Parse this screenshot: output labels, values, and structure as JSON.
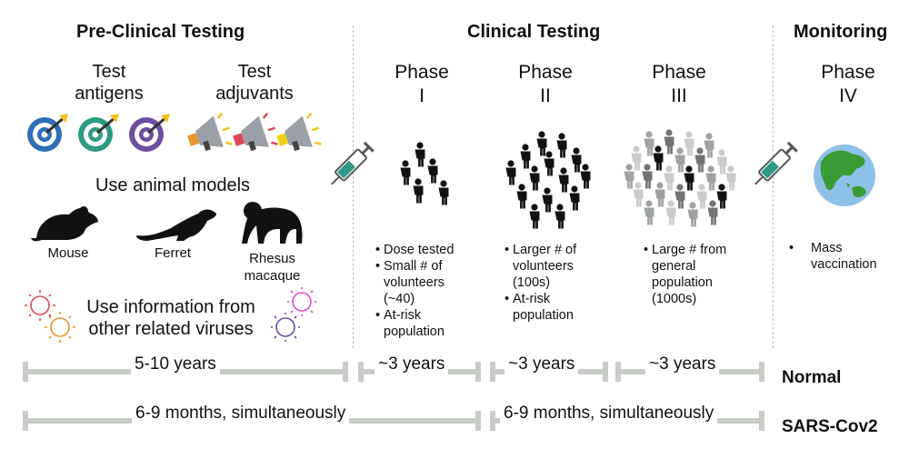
{
  "sections": {
    "preclinical": "Pre-Clinical Testing",
    "clinical": "Clinical Testing",
    "monitoring": "Monitoring"
  },
  "preclinical": {
    "antigens_line1": "Test",
    "antigens_line2": "antigens",
    "adjuvants_line1": "Test",
    "adjuvants_line2": "adjuvants",
    "animal_models": "Use animal models",
    "animals": {
      "mouse": "Mouse",
      "ferret": "Ferret",
      "rhesus_line1": "Rhesus",
      "rhesus_line2": "macaque"
    },
    "related_line1": "Use information from",
    "related_line2": "other related viruses"
  },
  "phases": [
    {
      "word": "Phase",
      "num": "I",
      "bullets": [
        "Dose tested",
        "Small # of volunteers (~40)",
        "At-risk population"
      ]
    },
    {
      "word": "Phase",
      "num": "II",
      "bullets": [
        "Larger # of volunteers (100s)",
        "At-risk population"
      ]
    },
    {
      "word": "Phase",
      "num": "III",
      "bullets": [
        "Large # from general population (1000s)"
      ]
    },
    {
      "word": "Phase",
      "num": "IV",
      "bullets": [
        "Mass vaccination"
      ]
    }
  ],
  "timeline": {
    "normal_label": "Normal",
    "sars_label": "SARS-Cov2",
    "normal": [
      "5-10 years",
      "~3 years",
      "~3 years",
      "~3 years"
    ],
    "sars": [
      "6-9 months, simultaneously",
      "6-9 months, simultaneously"
    ]
  },
  "colors": {
    "bar": "#c8ccc7",
    "target_blue": "#2f6fb5",
    "target_teal": "#2e9a83",
    "target_purple": "#6d4fa0",
    "globe_water": "#8ec1e8",
    "globe_land": "#3a9b35"
  }
}
